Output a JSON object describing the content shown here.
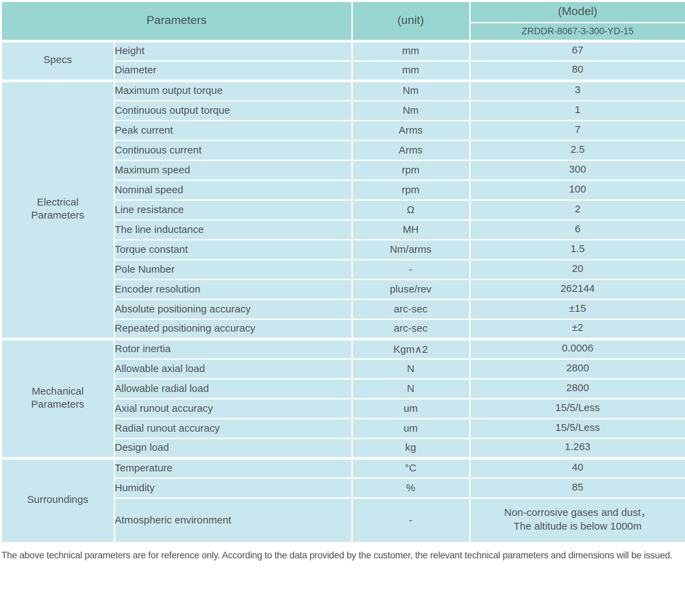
{
  "colors": {
    "header_bg": "#99d6d1",
    "body_bg": "#c9e7ee",
    "divider": "#ffffff",
    "text": "#4c4c4c"
  },
  "header": {
    "parameters_label": "Parameters",
    "unit_label": "(unit)",
    "model_label": "(Model)",
    "model_value": "ZRDDR-8067-3-300-YD-15"
  },
  "sections": [
    {
      "label": "Specs",
      "rows": [
        {
          "param": "Height",
          "unit": "mm",
          "value": "67"
        },
        {
          "param": "Diameter",
          "unit": "mm",
          "value": "80"
        }
      ]
    },
    {
      "label": "Electrical\nParameters",
      "rows": [
        {
          "param": "Maximum output torque",
          "unit": "Nm",
          "value": "3"
        },
        {
          "param": "Continuous output torque",
          "unit": "Nm",
          "value": "1"
        },
        {
          "param": "Peak current",
          "unit": "Arms",
          "value": "7"
        },
        {
          "param": "Continuous current",
          "unit": "Arms",
          "value": "2.5"
        },
        {
          "param": "Maximum speed",
          "unit": "rpm",
          "value": "300"
        },
        {
          "param": "Nominal speed",
          "unit": "rpm",
          "value": "100"
        },
        {
          "param": "Line resistance",
          "unit": "Ω",
          "value": "2"
        },
        {
          "param": "The line inductance",
          "unit": "MH",
          "value": "6"
        },
        {
          "param": "Torque constant",
          "unit": "Nm/arms",
          "value": "1.5"
        },
        {
          "param": "Pole Number",
          "unit": "-",
          "value": "20"
        },
        {
          "param": "Encoder resolution",
          "unit": "pluse/rev",
          "value": "262144"
        },
        {
          "param": "Absolute positioning accuracy",
          "unit": "arc-sec",
          "value": "±15"
        },
        {
          "param": "Repeated positioning accuracy",
          "unit": "arc-sec",
          "value": "±2"
        }
      ]
    },
    {
      "label": "Mechanical\nParameters",
      "rows": [
        {
          "param": "Rotor inertia",
          "unit": "Kgm∧2",
          "value": "0.0006"
        },
        {
          "param": "Allowable axial load",
          "unit": "N",
          "value": "2800"
        },
        {
          "param": "Allowable radial load",
          "unit": "N",
          "value": "2800"
        },
        {
          "param": "Axial runout accuracy",
          "unit": "um",
          "value": "15/5/Less"
        },
        {
          "param": "Radial runout accuracy",
          "unit": "um",
          "value": "15/5/Less"
        },
        {
          "param": "Design load",
          "unit": "kg",
          "value": "1.263"
        }
      ]
    },
    {
      "label": "Surroundings",
      "rows": [
        {
          "param": "Temperature",
          "unit": "°C",
          "value": "40"
        },
        {
          "param": "Humidity",
          "unit": "%",
          "value": "85"
        },
        {
          "param": "Atmospheric environment",
          "unit": "-",
          "value": "Non-corrosive gases and dust，\nThe altitude is below 1000m",
          "tall": true
        }
      ]
    }
  ],
  "footnote": "The above technical parameters are for reference only. According to the data provided by the customer, the relevant technical parameters and dimensions will be issued."
}
